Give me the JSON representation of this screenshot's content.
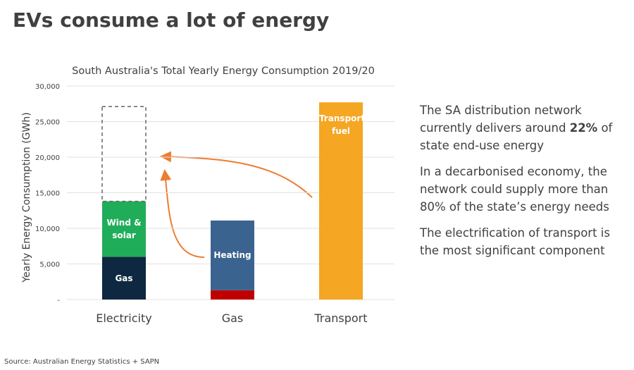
{
  "title": "EVs consume a lot of energy",
  "chart_data": {
    "type": "bar",
    "stacked": true,
    "title": "South Australia's Total Yearly Energy Consumption 2019/20",
    "y_label": "Yearly Energy Consumption (GWh)",
    "categories": [
      "Electricity",
      "Gas",
      "Transport"
    ],
    "series": [
      {
        "name": "Gas",
        "color": "#0e2841",
        "values": [
          6000,
          null,
          null
        ]
      },
      {
        "name": "Wind & solar",
        "color": "#1fad5a",
        "values": [
          7800,
          null,
          null
        ]
      },
      {
        "color": "none",
        "style": "dashed",
        "values": [
          13300,
          null,
          null
        ]
      },
      {
        "color": "#c00000",
        "values": [
          null,
          1300,
          null
        ]
      },
      {
        "name": "Heating",
        "color": "#3b6390",
        "values": [
          null,
          9800,
          null
        ]
      },
      {
        "name": "Transport fuel",
        "color": "#f5a623",
        "values": [
          null,
          null,
          27700
        ]
      }
    ],
    "ylim": [
      0,
      30000
    ],
    "yticks": [
      {
        "value": 0,
        "label": "-"
      },
      {
        "value": 5000,
        "label": "5,000"
      },
      {
        "value": 10000,
        "label": "10,000"
      },
      {
        "value": 15000,
        "label": "15,000"
      },
      {
        "value": 20000,
        "label": "20,000"
      },
      {
        "value": 25000,
        "label": "25,000"
      },
      {
        "value": 30000,
        "label": "30,000"
      }
    ],
    "grid": true
  },
  "text_panel": {
    "paragraphs": [
      [
        "The SA distribution network currently delivers around ",
        "22%",
        " of state end-use energy"
      ],
      [
        "In a decarbonised economy, the network could supply more than 80% of the state’s energy needs"
      ],
      [
        "The electrification of transport is the most significant component"
      ]
    ]
  },
  "source": "Source: Australian Energy Statistics + SAPN"
}
